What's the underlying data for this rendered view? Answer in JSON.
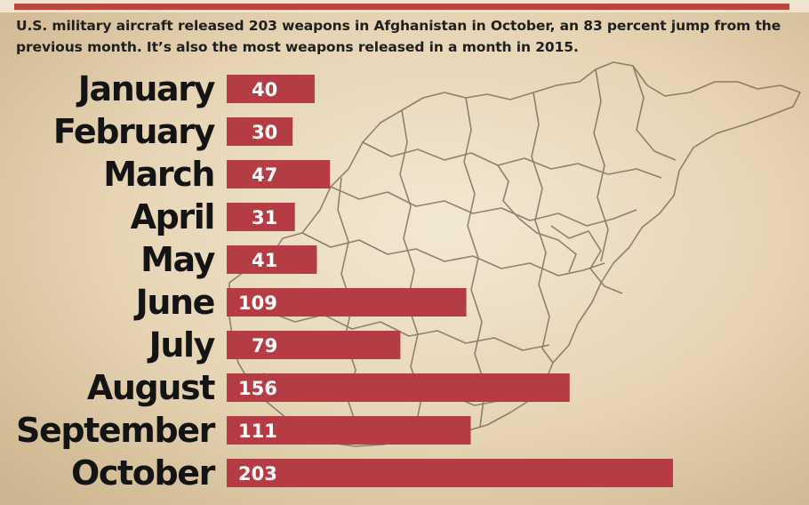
{
  "subtitle": "U.S. military aircraft released 203 weapons in Afghanistan in October, an 83 percent jump from the previous month. It’s also the most weapons released in a month in 2015.",
  "colors": {
    "bar": "#b33c45",
    "parchment": "#e8d9bd",
    "map_line": "#6e6150",
    "label_text": "#141414",
    "value_text": "#ffffff",
    "title_accent": "#b8463f"
  },
  "chart_data": {
    "type": "bar",
    "orientation": "horizontal",
    "categories": [
      "January",
      "February",
      "March",
      "April",
      "May",
      "June",
      "July",
      "August",
      "September",
      "October"
    ],
    "values": [
      40,
      30,
      47,
      31,
      41,
      109,
      79,
      156,
      111,
      203
    ],
    "xlim": [
      0,
      203
    ],
    "grid": false,
    "legend": "none",
    "data_labels": true
  }
}
